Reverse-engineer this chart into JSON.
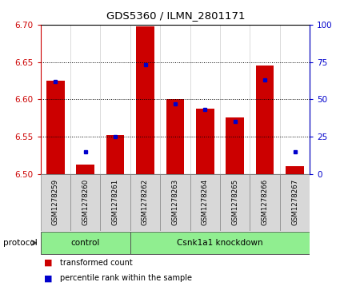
{
  "title": "GDS5360 / ILMN_2801171",
  "samples": [
    "GSM1278259",
    "GSM1278260",
    "GSM1278261",
    "GSM1278262",
    "GSM1278263",
    "GSM1278264",
    "GSM1278265",
    "GSM1278266",
    "GSM1278267"
  ],
  "transformed_count": [
    6.625,
    6.513,
    6.552,
    6.698,
    6.6,
    6.588,
    6.576,
    6.645,
    6.51
  ],
  "percentile_rank": [
    62,
    15,
    25,
    73,
    47,
    43,
    35,
    63,
    15
  ],
  "ylim_left": [
    6.5,
    6.7
  ],
  "ylim_right": [
    0,
    100
  ],
  "yticks_left": [
    6.5,
    6.55,
    6.6,
    6.65,
    6.7
  ],
  "yticks_right": [
    0,
    25,
    50,
    75,
    100
  ],
  "bar_color": "#cc0000",
  "marker_color": "#0000cc",
  "left_tick_color": "#cc0000",
  "right_tick_color": "#0000cc",
  "group_boundaries": [
    0,
    3,
    9
  ],
  "group_labels": [
    "control",
    "Csnk1a1 knockdown"
  ],
  "group_color": "#90ee90",
  "protocol_label": "protocol",
  "legend_items": [
    "transformed count",
    "percentile rank within the sample"
  ]
}
